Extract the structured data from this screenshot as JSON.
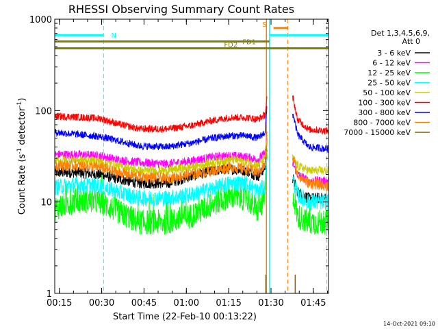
{
  "chart_data": {
    "type": "line",
    "title": "RHESSI Observing Summary Count Rates",
    "xlabel": "Start Time (22-Feb-10 00:13:22)",
    "ylabel_main": "Count Rate (s",
    "ylabel_sup1": "-1",
    "ylabel_mid": " detector",
    "ylabel_sup2": "-1",
    "ylabel_end": ")",
    "yscale": "log",
    "ylim": [
      1,
      1000
    ],
    "xlim_minutes": [
      0,
      97
    ],
    "y_ticks": [
      {
        "value": 1,
        "label": "1"
      },
      {
        "value": 10,
        "label": "10"
      },
      {
        "value": 100,
        "label": "100"
      },
      {
        "value": 1000,
        "label": "1000"
      }
    ],
    "x_ticks": [
      {
        "minute": 1.63,
        "label": "00:15"
      },
      {
        "minute": 16.63,
        "label": "00:30"
      },
      {
        "minute": 31.63,
        "label": "00:45"
      },
      {
        "minute": 46.63,
        "label": "01:00"
      },
      {
        "minute": 61.63,
        "label": "01:15"
      },
      {
        "minute": 76.63,
        "label": "01:30"
      },
      {
        "minute": 91.63,
        "label": "01:45"
      }
    ],
    "legend": {
      "placement": "right",
      "header1": "Det 1,3,4,5,6,9,",
      "header2": "Att 0",
      "entries": [
        {
          "label": "3 - 6 keV",
          "color": "#000000"
        },
        {
          "label": "6 - 12 keV",
          "color": "#ff00ff"
        },
        {
          "label": "12 - 25 keV",
          "color": "#00ff00"
        },
        {
          "label": "25 - 50 keV",
          "color": "#00ffff"
        },
        {
          "label": "50 - 100 keV",
          "color": "#cccc00"
        },
        {
          "label": "100 - 300 keV",
          "color": "#ff0000"
        },
        {
          "label": "300 - 800 keV",
          "color": "#0000ff"
        },
        {
          "label": "800 - 7000 keV",
          "color": "#ff8000"
        },
        {
          "label": "7000 - 15000 keV",
          "color": "#806000"
        }
      ]
    },
    "flags": [
      {
        "label": "N",
        "color": "#00ffff",
        "level": 670,
        "segments": [
          [
            0,
            17.3
          ],
          [
            76.1,
            97
          ]
        ]
      },
      {
        "label": "S",
        "color": "#ff8000",
        "level": 800,
        "segments": [
          [
            77.5,
            82.6
          ]
        ]
      },
      {
        "label": "FD1",
        "color": "#808000",
        "level": 570,
        "segments": [
          [
            0,
            76.1
          ]
        ]
      },
      {
        "label": "FD2",
        "color": "#808000",
        "level": 480,
        "segments": [
          [
            0,
            97
          ]
        ]
      }
    ],
    "markers": [
      {
        "minute": 17.3,
        "color": "#00ffff",
        "style": "dashed"
      },
      {
        "minute": 75.0,
        "color": "#ff8000",
        "style": "solid"
      },
      {
        "minute": 76.1,
        "color": "#00ffff",
        "style": "solid"
      },
      {
        "minute": 82.6,
        "color": "#ff8000",
        "style": "dashed"
      },
      {
        "minute": 96.4,
        "color": "#00ffff",
        "style": "dashed"
      }
    ],
    "gap": [
      75.5,
      84.3
    ],
    "series": [
      {
        "name": "3 - 6 keV",
        "color": "#000000",
        "noise": 0.06,
        "x": [
          0,
          8,
          16,
          22,
          30,
          40,
          48,
          56,
          62,
          68,
          72,
          74.5,
          75.2,
          84.5,
          86,
          90,
          97
        ],
        "y": [
          21,
          21,
          20,
          18,
          16,
          16,
          19,
          22,
          23,
          22,
          19,
          24,
          40,
          18,
          13,
          11,
          11
        ]
      },
      {
        "name": "6 - 12 keV",
        "color": "#ff00ff",
        "noise": 0.05,
        "x": [
          0,
          8,
          16,
          22,
          30,
          40,
          48,
          56,
          62,
          68,
          72,
          74.5,
          75.2,
          84.5,
          86,
          90,
          97
        ],
        "y": [
          33,
          33,
          32,
          29,
          27,
          26,
          28,
          31,
          32,
          31,
          29,
          34,
          55,
          26,
          20,
          17,
          17
        ]
      },
      {
        "name": "12 - 25 keV",
        "color": "#00ff00",
        "noise": 0.14,
        "x": [
          0,
          8,
          16,
          22,
          30,
          40,
          48,
          56,
          62,
          68,
          72,
          74.5,
          75.2,
          84.5,
          86,
          90,
          97
        ],
        "y": [
          8.5,
          10.5,
          10,
          8,
          6,
          6,
          7,
          9.5,
          11.5,
          11,
          8,
          11,
          30,
          12,
          7,
          6,
          6
        ]
      },
      {
        "name": "25 - 50 keV",
        "color": "#00ffff",
        "noise": 0.09,
        "x": [
          0,
          8,
          16,
          22,
          30,
          40,
          48,
          56,
          62,
          68,
          72,
          74.5,
          75.2,
          84.5,
          86,
          90,
          97
        ],
        "y": [
          14.5,
          15.5,
          15,
          13,
          11,
          11,
          12,
          14,
          16,
          16,
          13,
          15,
          35,
          17,
          12,
          10,
          10
        ]
      },
      {
        "name": "50 - 100 keV",
        "color": "#cccc00",
        "noise": 0.05,
        "x": [
          0,
          8,
          16,
          22,
          30,
          40,
          48,
          56,
          62,
          68,
          72,
          74.5,
          75.2,
          84.5,
          86,
          90,
          97
        ],
        "y": [
          28,
          29,
          28,
          25,
          22,
          22,
          24,
          27,
          29,
          28,
          25,
          30,
          52,
          30,
          25,
          22,
          22
        ]
      },
      {
        "name": "100 - 300 keV",
        "color": "#ff0000",
        "noise": 0.04,
        "x": [
          0,
          8,
          16,
          22,
          30,
          40,
          48,
          56,
          62,
          68,
          72,
          74.5,
          75.2,
          84.5,
          86,
          90,
          97
        ],
        "y": [
          87,
          85,
          82,
          72,
          63,
          63,
          68,
          78,
          84,
          84,
          80,
          90,
          135,
          135,
          80,
          62,
          60
        ]
      },
      {
        "name": "300 - 800 keV",
        "color": "#0000ff",
        "noise": 0.04,
        "x": [
          0,
          8,
          16,
          22,
          30,
          40,
          48,
          56,
          62,
          68,
          72,
          74.5,
          75.2,
          84.5,
          86,
          90,
          97
        ],
        "y": [
          58,
          55,
          52,
          47,
          41,
          40,
          44,
          50,
          53,
          53,
          50,
          58,
          110,
          90,
          55,
          40,
          38
        ]
      },
      {
        "name": "800 - 7000 keV",
        "color": "#ff8000",
        "noise": 0.06,
        "x": [
          0,
          8,
          16,
          22,
          30,
          40,
          48,
          56,
          62,
          68,
          72,
          74.5,
          75.2,
          84.5,
          86,
          90,
          97
        ],
        "y": [
          25,
          25,
          24,
          21,
          19,
          18,
          20,
          22,
          24,
          23,
          21,
          25,
          45,
          30,
          20,
          16,
          15
        ]
      },
      {
        "name": "7000 - 15000 keV",
        "color": "#806000",
        "noise": 0.0,
        "x": [],
        "y": []
      }
    ],
    "timestamp": "14-Oct-2021 09:10"
  }
}
